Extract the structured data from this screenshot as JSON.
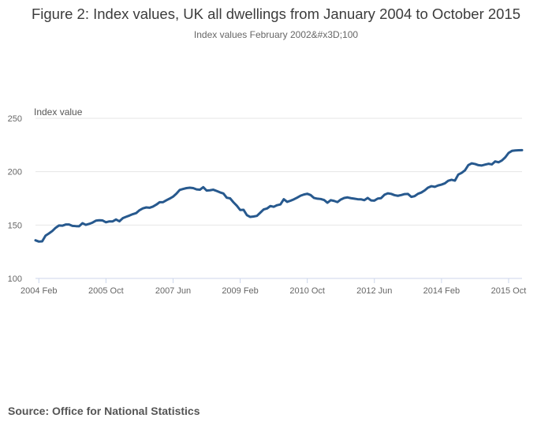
{
  "chart_data": {
    "type": "line",
    "title": "Figure 2: Index values, UK all dwellings from January 2004 to October 2015",
    "subtitle": "Index values February 2002&#x3D;100",
    "ylabel": "Index value",
    "xlabel": "",
    "ylim": [
      100,
      250
    ],
    "yticks": [
      100,
      150,
      200,
      250
    ],
    "xticks": [
      {
        "label": "2004 Feb",
        "index": 1
      },
      {
        "label": "2005 Oct",
        "index": 21
      },
      {
        "label": "2007 Jun",
        "index": 41
      },
      {
        "label": "2009 Feb",
        "index": 61
      },
      {
        "label": "2010 Oct",
        "index": 81
      },
      {
        "label": "2012 Jun",
        "index": 101
      },
      {
        "label": "2014 Feb",
        "index": 121
      },
      {
        "label": "2015 Oct",
        "index": 141
      }
    ],
    "series": [
      {
        "name": "UK all dwellings",
        "color": "#27598e",
        "start": "2004 Jan",
        "end": "2015 Oct",
        "values": [
          135.7,
          134.5,
          134.7,
          140.1,
          142.1,
          144.4,
          147.4,
          149.6,
          149.4,
          150.5,
          150.5,
          149.2,
          149.0,
          148.9,
          151.7,
          150.2,
          151.1,
          152.3,
          154.1,
          154.5,
          154.3,
          152.6,
          153.4,
          153.4,
          155.2,
          153.5,
          156.4,
          157.7,
          158.9,
          160.2,
          161.2,
          163.9,
          165.6,
          166.5,
          166.2,
          167.3,
          169.1,
          171.4,
          171.4,
          173.2,
          174.8,
          176.6,
          179.4,
          182.9,
          183.8,
          184.6,
          185.0,
          184.6,
          183.4,
          183.1,
          185.5,
          182.3,
          182.6,
          183.1,
          181.9,
          180.6,
          179.6,
          175.6,
          175.0,
          171.3,
          168.1,
          164.1,
          164.3,
          159.3,
          157.6,
          158.0,
          158.6,
          161.6,
          164.6,
          165.5,
          167.8,
          167.1,
          168.6,
          169.3,
          174.2,
          171.7,
          172.8,
          174.1,
          175.7,
          177.5,
          178.6,
          179.3,
          178.1,
          175.4,
          174.7,
          174.4,
          173.5,
          170.9,
          173.3,
          172.6,
          171.5,
          173.9,
          175.4,
          175.9,
          175.2,
          174.7,
          174.2,
          174.1,
          173.3,
          175.4,
          173.1,
          172.9,
          174.8,
          175.2,
          178.4,
          179.7,
          179.2,
          178.0,
          177.4,
          178.1,
          179.0,
          179.2,
          176.4,
          177.1,
          179.3,
          180.5,
          182.5,
          185.1,
          186.4,
          185.8,
          187.1,
          187.9,
          189.1,
          191.5,
          192.4,
          191.6,
          197.3,
          198.9,
          201.3,
          206.2,
          207.8,
          207.2,
          206.1,
          205.8,
          206.6,
          207.4,
          206.8,
          209.6,
          208.8,
          210.5,
          213.4,
          217.6,
          219.5,
          219.9,
          220.1,
          220.2
        ]
      }
    ]
  },
  "source_text": "Source: Office for National Statistics"
}
